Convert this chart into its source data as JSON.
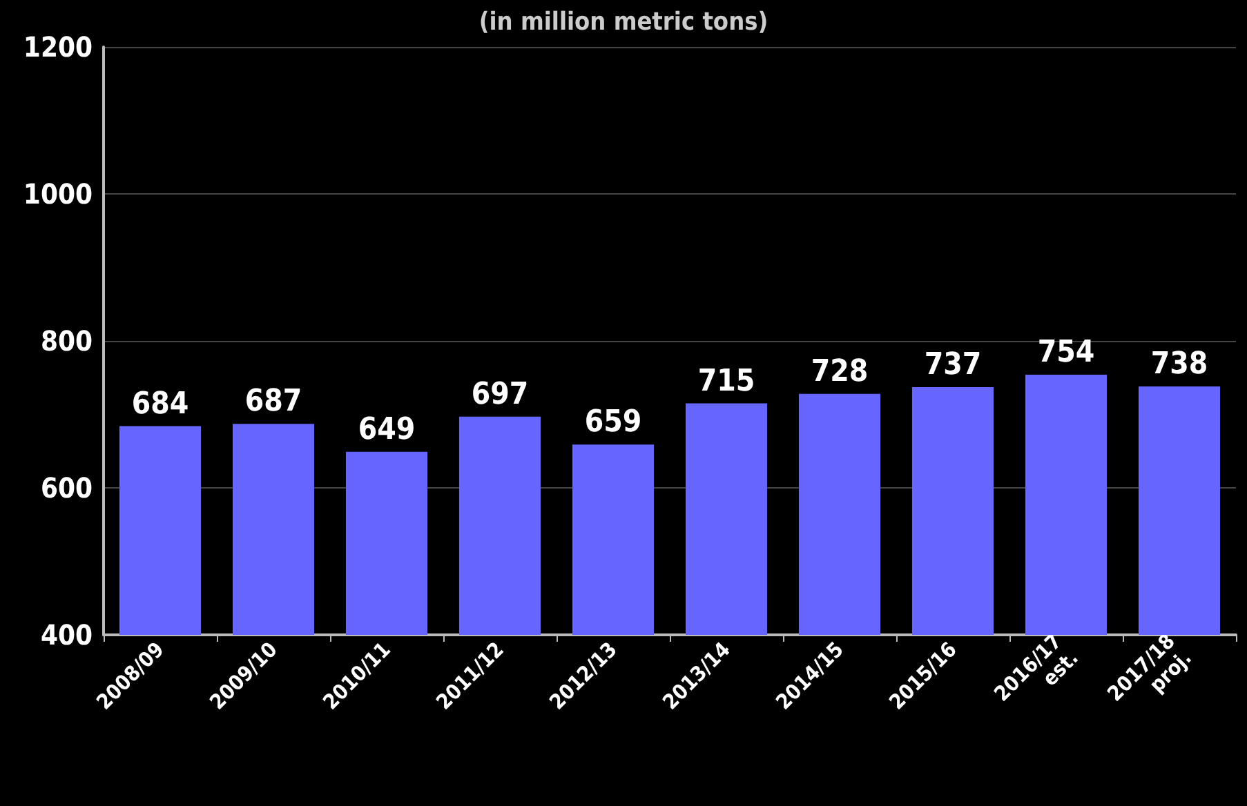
{
  "chart_data": {
    "type": "bar",
    "subtitle": "(in million metric tons)",
    "categories": [
      "2008/09",
      "2009/10",
      "2010/11",
      "2011/12",
      "2012/13",
      "2013/14",
      "2014/15",
      "2015/16",
      "2016/17\nest.",
      "2017/18\nproj."
    ],
    "values": [
      684,
      687,
      649,
      697,
      659,
      715,
      728,
      737,
      754,
      738
    ],
    "color": "#6666ff",
    "ylim": [
      400,
      1200
    ],
    "yticks": [
      400,
      600,
      800,
      1000,
      1200
    ],
    "grid": "y",
    "data_labels": true
  }
}
